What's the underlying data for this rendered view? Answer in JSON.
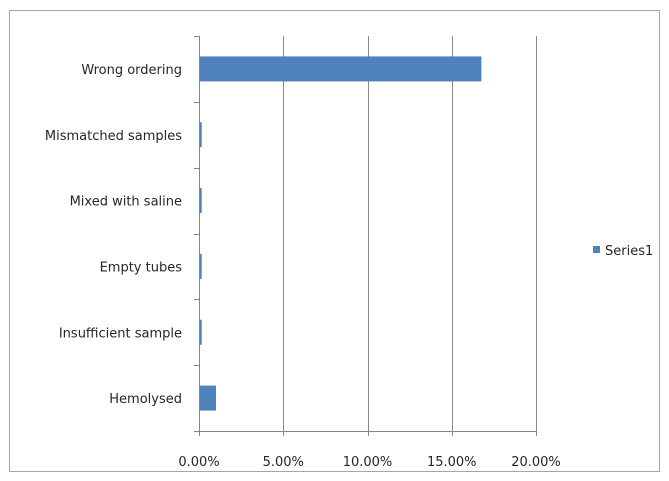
{
  "chart_data": {
    "type": "bar",
    "orientation": "horizontal",
    "title": "",
    "xlabel": "",
    "ylabel": "",
    "categories": [
      "Wrong ordering",
      "Mismatched samples",
      "Mixed with saline",
      "Empty tubes",
      "Insufficient sample",
      "Hemolysed"
    ],
    "series": [
      {
        "name": "Series1",
        "color": "#4f81bd",
        "values": [
          16.7,
          0.1,
          0.1,
          0.1,
          0.1,
          0.95
        ]
      }
    ],
    "xlim": [
      0,
      20
    ],
    "xticks": [
      0,
      5,
      10,
      15,
      20
    ],
    "xtick_labels": [
      "0.00%",
      "5.00%",
      "10.00%",
      "15.00%",
      "20.00%"
    ],
    "grid": true,
    "legend_position": "right"
  }
}
